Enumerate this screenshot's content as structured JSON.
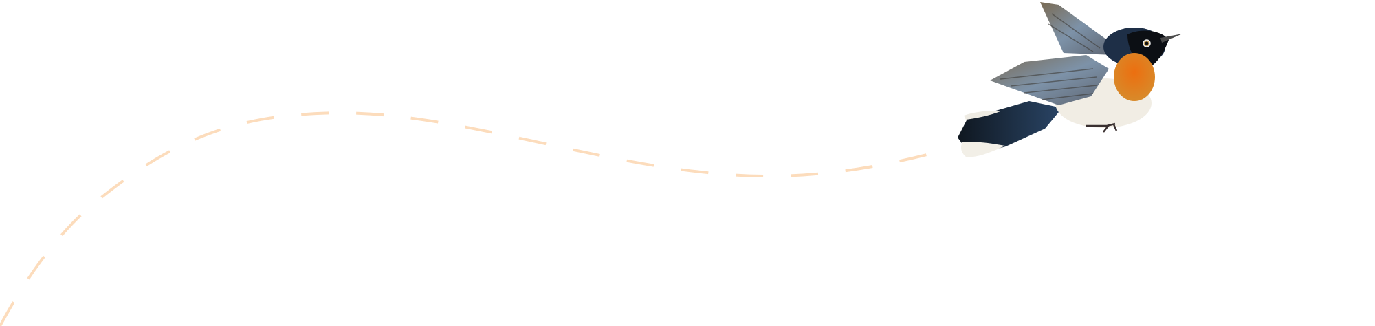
{
  "illustration": {
    "subject": "bird-in-flight",
    "colors": {
      "background": "#ffffff",
      "flight_path": "#fcdcbc",
      "head": "#1e2f47",
      "breast": "#e36a12",
      "belly": "#f1ede4",
      "wing": "#8a8a84",
      "tail": "#15202f"
    }
  }
}
